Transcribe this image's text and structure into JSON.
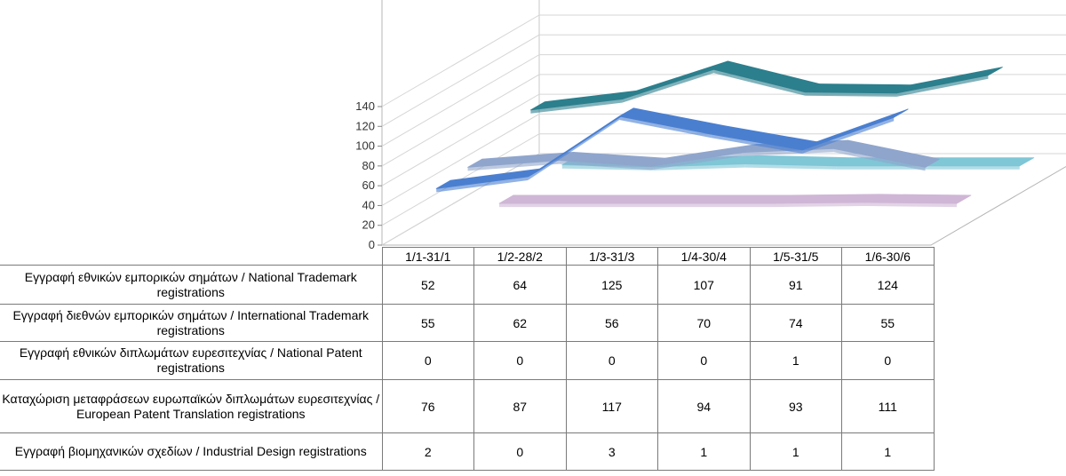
{
  "chart_data": {
    "type": "line",
    "categories": [
      "1/1-31/1",
      "1/2-28/2",
      "1/3-31/3",
      "1/4-30/4",
      "1/5-31/5",
      "1/6-30/6"
    ],
    "y_ticks": [
      "0",
      "20",
      "40",
      "60",
      "80",
      "100",
      "120",
      "140"
    ],
    "ylim": [
      0,
      140
    ],
    "grid": true,
    "series": [
      {
        "name": "Εγγραφή εθνικών εμπορικών σημάτων / National Trademark registrations",
        "values": [
          52,
          64,
          125,
          107,
          91,
          124
        ],
        "color": "#4a7fd0"
      },
      {
        "name": "Εγγραφή διεθνών εμπορικών σημάτων / International Trademark registrations",
        "values": [
          55,
          62,
          56,
          70,
          74,
          55
        ],
        "color": "#8fa5cc"
      },
      {
        "name": "Εγγραφή εθνικών διπλωμάτων ευρεσιτεχνίας / National Patent registrations",
        "values": [
          0,
          0,
          0,
          0,
          1,
          0
        ],
        "color": "#cfb6d6"
      },
      {
        "name": "Καταχώριση μεταφράσεων ευρωπαϊκών διπλωμάτων ευρεσιτεχνίας / European Patent Translation registrations",
        "values": [
          76,
          87,
          117,
          94,
          93,
          111
        ],
        "color": "#2c7f8d"
      },
      {
        "name": "Εγγραφή βιομηχανικών σχεδίων / Industrial Design registrations",
        "values": [
          2,
          0,
          3,
          1,
          1,
          1
        ],
        "color": "#7fc6d6"
      }
    ]
  }
}
